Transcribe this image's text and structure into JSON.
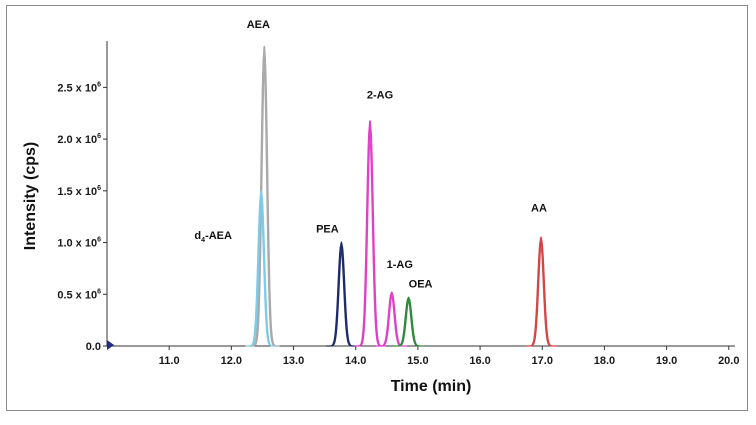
{
  "chart_data": {
    "type": "line",
    "title": "",
    "xlabel": "Time (min)",
    "ylabel": "Intensity (cps)",
    "xlim": [
      10.0,
      20.1
    ],
    "ylim": [
      0,
      2900000
    ],
    "x_ticks": [
      11.0,
      12.0,
      13.0,
      14.0,
      15.0,
      16.0,
      17.0,
      18.0,
      19.0,
      20.0
    ],
    "x_tick_labels": [
      "11.0",
      "12.0",
      "13.0",
      "14.0",
      "15.0",
      "16.0",
      "17.0",
      "18.0",
      "19.0",
      "20.0"
    ],
    "y_ticks": [
      0,
      500000,
      1000000,
      1500000,
      2000000,
      2500000
    ],
    "y_tick_labels": [
      {
        "base": "0.0",
        "exp": ""
      },
      {
        "base": "0.5 x 10",
        "exp": "6"
      },
      {
        "base": "1.0 x 10",
        "exp": "6"
      },
      {
        "base": "1.5 x 10",
        "exp": "6"
      },
      {
        "base": "2.0 x 10",
        "exp": "6"
      },
      {
        "base": "2.5 x 10",
        "exp": "6"
      }
    ],
    "grid": false,
    "series": [
      {
        "name": "AEA",
        "label": {
          "text": "AEA",
          "sub": ""
        },
        "color": "#a9a9a9",
        "rt": 12.53,
        "height": 2900000
      },
      {
        "name": "d4-AEA",
        "label": {
          "text": "d",
          "sub": "4",
          "rest": "-AEA"
        },
        "color": "#7ecbe8",
        "rt": 12.48,
        "height": 1500000
      },
      {
        "name": "PEA",
        "label": {
          "text": "PEA",
          "sub": ""
        },
        "color": "#1f2a6b",
        "rt": 13.77,
        "height": 1000000
      },
      {
        "name": "2-AG",
        "label": {
          "text": "2-AG",
          "sub": ""
        },
        "color": "#e040c8",
        "rt": 14.23,
        "height": 2180000
      },
      {
        "name": "1-AG",
        "label": {
          "text": "1-AG",
          "sub": ""
        },
        "color": "#e040c8",
        "rt": 14.58,
        "height": 520000
      },
      {
        "name": "OEA",
        "label": {
          "text": "OEA",
          "sub": ""
        },
        "color": "#2e8b3a",
        "rt": 14.85,
        "height": 470000
      },
      {
        "name": "AA",
        "label": {
          "text": "AA",
          "sub": ""
        },
        "color": "#d64545",
        "rt": 16.98,
        "height": 1050000
      }
    ]
  }
}
